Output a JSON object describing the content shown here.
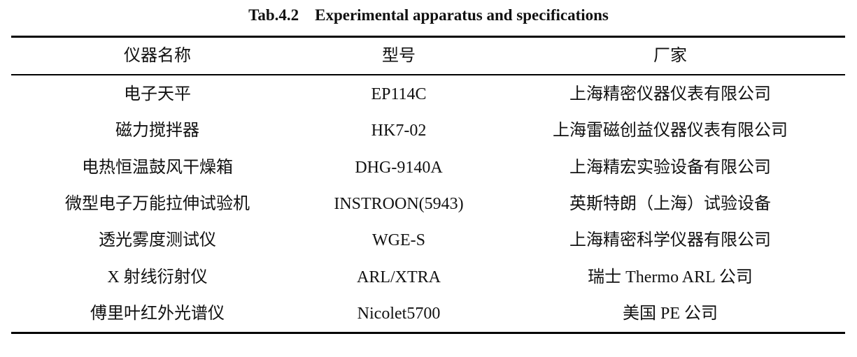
{
  "title": "Tab.4.2    Experimental apparatus and specifications",
  "table": {
    "header": [
      "仪器名称",
      "型号",
      "厂家"
    ],
    "rows": [
      [
        "电子天平",
        "EP114C",
        "上海精密仪器仪表有限公司"
      ],
      [
        "磁力搅拌器",
        "HK7-02",
        "上海雷磁创益仪器仪表有限公司"
      ],
      [
        "电热恒温鼓风干燥箱",
        "DHG-9140A",
        "上海精宏实验设备有限公司"
      ],
      [
        "微型电子万能拉伸试验机",
        "INSTROON(5943)",
        "英斯特朗（上海）试验设备"
      ],
      [
        "透光雾度测试仪",
        "WGE-S",
        "上海精密科学仪器有限公司"
      ],
      [
        "X 射线衍射仪",
        "ARL/XTRA",
        "瑞士 Thermo ARL 公司"
      ],
      [
        "傅里叶红外光谱仪",
        "Nicolet5700",
        "美国 PE 公司"
      ]
    ]
  }
}
